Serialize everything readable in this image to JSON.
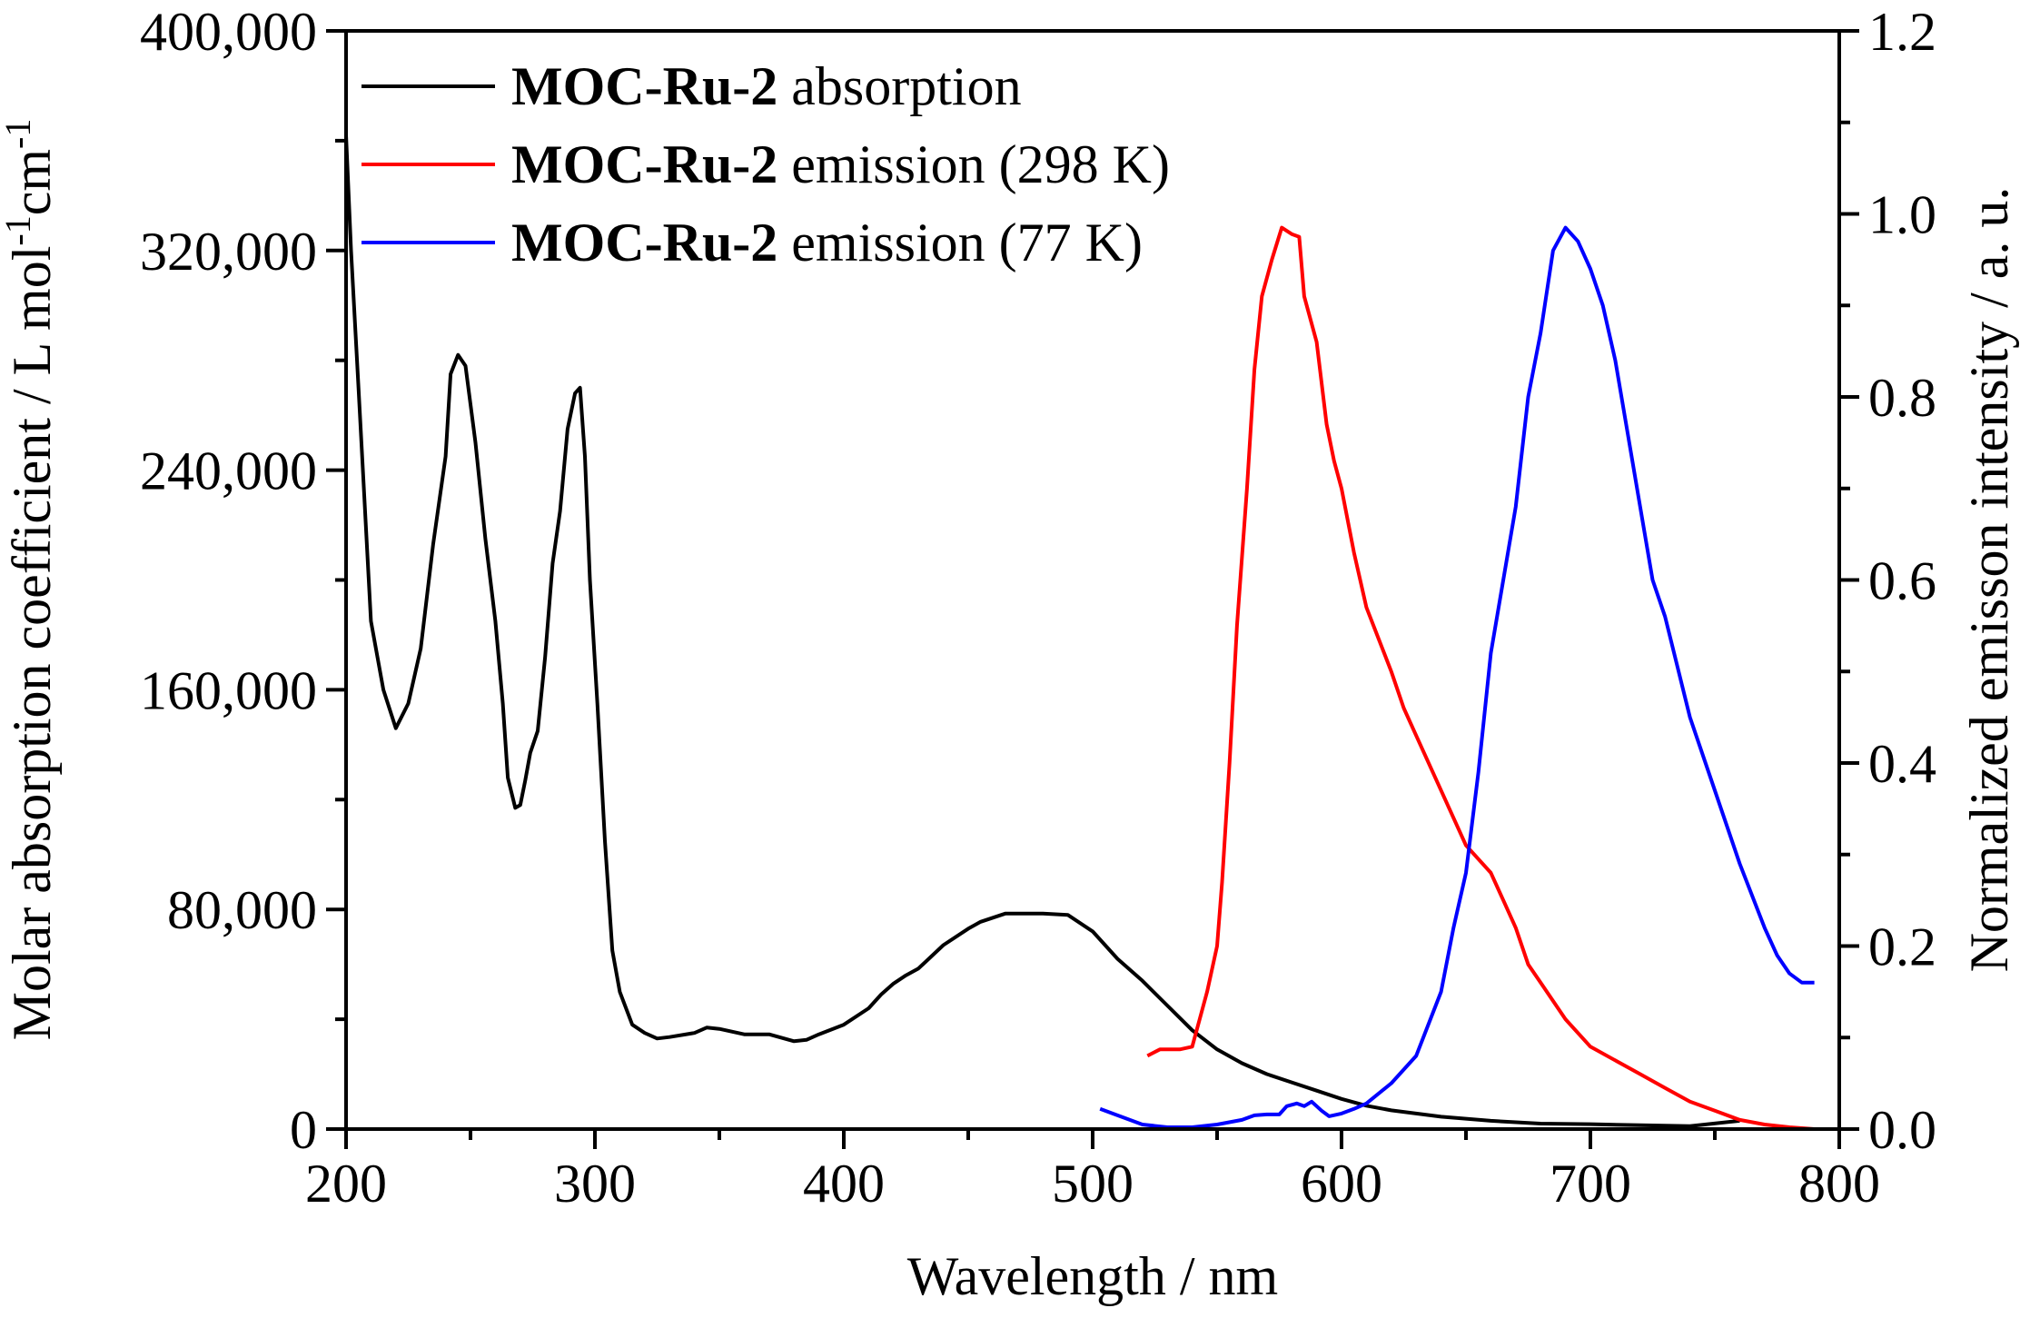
{
  "chart_data": {
    "type": "line",
    "xlabel": "Wavelength / nm",
    "ylabel_left": {
      "prefix": "Molar absorption coefficient / L mol",
      "sup1": "-1",
      "mid": "cm",
      "sup2": "-1"
    },
    "ylabel_right": "Normalized emisson intensity / a. u.",
    "xlim": [
      200,
      800
    ],
    "ylim_left": [
      0,
      400000
    ],
    "ylim_right": [
      0,
      1.2
    ],
    "x_ticks": [
      200,
      300,
      400,
      500,
      600,
      700,
      800
    ],
    "x_tick_labels": [
      "200",
      "300",
      "400",
      "500",
      "600",
      "700",
      "800"
    ],
    "y_left_ticks": [
      0,
      80000,
      160000,
      240000,
      320000,
      400000
    ],
    "y_left_tick_labels": [
      "0",
      "80,000",
      "160,000",
      "240,000",
      "320,000",
      "400,000"
    ],
    "y_right_ticks": [
      0,
      0.2,
      0.4,
      0.6,
      0.8,
      1.0,
      1.2
    ],
    "y_right_tick_labels": [
      "0.0",
      "0.2",
      "0.4",
      "0.6",
      "0.8",
      "1.0",
      "1.2"
    ],
    "legend_position": "top-left",
    "series": [
      {
        "name_bold": "MOC-Ru-2",
        "name_rest": " absorption",
        "color": "#000000",
        "axis": "left",
        "points": [
          [
            200,
            362000
          ],
          [
            202,
            320000
          ],
          [
            205,
            270000
          ],
          [
            210,
            185000
          ],
          [
            215,
            160000
          ],
          [
            220,
            146000
          ],
          [
            225,
            155000
          ],
          [
            230,
            175000
          ],
          [
            235,
            213000
          ],
          [
            240,
            245000
          ],
          [
            242,
            275000
          ],
          [
            245,
            282000
          ],
          [
            248,
            278000
          ],
          [
            252,
            250000
          ],
          [
            256,
            215000
          ],
          [
            260,
            185000
          ],
          [
            263,
            155000
          ],
          [
            265,
            128000
          ],
          [
            268,
            117000
          ],
          [
            270,
            118000
          ],
          [
            272,
            127000
          ],
          [
            274,
            137000
          ],
          [
            277,
            145000
          ],
          [
            280,
            172000
          ],
          [
            283,
            206000
          ],
          [
            286,
            225000
          ],
          [
            289,
            255000
          ],
          [
            292,
            268000
          ],
          [
            294,
            270000
          ],
          [
            296,
            245000
          ],
          [
            298,
            200000
          ],
          [
            301,
            155000
          ],
          [
            304,
            105000
          ],
          [
            307,
            65000
          ],
          [
            310,
            50000
          ],
          [
            315,
            38000
          ],
          [
            320,
            35000
          ],
          [
            325,
            33000
          ],
          [
            330,
            33500
          ],
          [
            340,
            35000
          ],
          [
            345,
            37000
          ],
          [
            350,
            36500
          ],
          [
            355,
            35500
          ],
          [
            360,
            34500
          ],
          [
            370,
            34500
          ],
          [
            380,
            32000
          ],
          [
            385,
            32500
          ],
          [
            390,
            34500
          ],
          [
            400,
            38000
          ],
          [
            410,
            44000
          ],
          [
            415,
            49000
          ],
          [
            420,
            53000
          ],
          [
            425,
            56000
          ],
          [
            430,
            58500
          ],
          [
            440,
            67000
          ],
          [
            450,
            73000
          ],
          [
            455,
            75500
          ],
          [
            465,
            78500
          ],
          [
            475,
            78500
          ],
          [
            480,
            78500
          ],
          [
            490,
            78000
          ],
          [
            500,
            72000
          ],
          [
            510,
            62000
          ],
          [
            520,
            54000
          ],
          [
            530,
            45000
          ],
          [
            540,
            36000
          ],
          [
            550,
            29000
          ],
          [
            560,
            24000
          ],
          [
            570,
            20000
          ],
          [
            580,
            17000
          ],
          [
            590,
            14000
          ],
          [
            600,
            11000
          ],
          [
            610,
            8500
          ],
          [
            620,
            6800
          ],
          [
            640,
            4500
          ],
          [
            660,
            3000
          ],
          [
            680,
            2000
          ],
          [
            700,
            1800
          ],
          [
            720,
            1400
          ],
          [
            740,
            1100
          ],
          [
            760,
            3000
          ]
        ]
      },
      {
        "name_bold": "MOC-Ru-2",
        "name_rest": " emission (298 K)",
        "color": "#ff0000",
        "axis": "right",
        "points": [
          [
            522,
            0.08
          ],
          [
            527,
            0.087
          ],
          [
            535,
            0.087
          ],
          [
            540,
            0.09
          ],
          [
            543,
            0.12
          ],
          [
            546,
            0.15
          ],
          [
            550,
            0.2
          ],
          [
            552,
            0.27
          ],
          [
            555,
            0.4
          ],
          [
            558,
            0.55
          ],
          [
            562,
            0.7
          ],
          [
            565,
            0.83
          ],
          [
            568,
            0.91
          ],
          [
            572,
            0.95
          ],
          [
            576,
            0.985
          ],
          [
            580,
            0.978
          ],
          [
            583,
            0.975
          ],
          [
            585,
            0.91
          ],
          [
            590,
            0.86
          ],
          [
            594,
            0.77
          ],
          [
            597,
            0.73
          ],
          [
            600,
            0.7
          ],
          [
            605,
            0.63
          ],
          [
            610,
            0.57
          ],
          [
            615,
            0.535
          ],
          [
            620,
            0.5
          ],
          [
            625,
            0.46
          ],
          [
            630,
            0.43
          ],
          [
            640,
            0.37
          ],
          [
            650,
            0.31
          ],
          [
            660,
            0.28
          ],
          [
            665,
            0.25
          ],
          [
            670,
            0.22
          ],
          [
            675,
            0.18
          ],
          [
            680,
            0.16
          ],
          [
            690,
            0.12
          ],
          [
            700,
            0.09
          ],
          [
            710,
            0.075
          ],
          [
            720,
            0.06
          ],
          [
            730,
            0.045
          ],
          [
            740,
            0.03
          ],
          [
            750,
            0.02
          ],
          [
            760,
            0.01
          ],
          [
            770,
            0.005
          ],
          [
            780,
            0.002
          ],
          [
            790,
            0.0
          ]
        ]
      },
      {
        "name_bold": "MOC-Ru-2",
        "name_rest": " emission (77 K)",
        "color": "#0000ff",
        "axis": "right",
        "points": [
          [
            503,
            0.022
          ],
          [
            510,
            0.015
          ],
          [
            520,
            0.005
          ],
          [
            530,
            0.002
          ],
          [
            540,
            0.002
          ],
          [
            550,
            0.005
          ],
          [
            560,
            0.01
          ],
          [
            565,
            0.015
          ],
          [
            570,
            0.016
          ],
          [
            575,
            0.016
          ],
          [
            578,
            0.025
          ],
          [
            582,
            0.028
          ],
          [
            585,
            0.025
          ],
          [
            588,
            0.03
          ],
          [
            592,
            0.02
          ],
          [
            595,
            0.014
          ],
          [
            600,
            0.017
          ],
          [
            605,
            0.022
          ],
          [
            610,
            0.028
          ],
          [
            620,
            0.05
          ],
          [
            630,
            0.08
          ],
          [
            640,
            0.15
          ],
          [
            645,
            0.22
          ],
          [
            650,
            0.28
          ],
          [
            655,
            0.39
          ],
          [
            660,
            0.52
          ],
          [
            665,
            0.6
          ],
          [
            670,
            0.68
          ],
          [
            675,
            0.8
          ],
          [
            680,
            0.87
          ],
          [
            685,
            0.96
          ],
          [
            690,
            0.985
          ],
          [
            695,
            0.97
          ],
          [
            700,
            0.94
          ],
          [
            705,
            0.9
          ],
          [
            710,
            0.84
          ],
          [
            715,
            0.76
          ],
          [
            720,
            0.68
          ],
          [
            725,
            0.6
          ],
          [
            730,
            0.56
          ],
          [
            740,
            0.45
          ],
          [
            750,
            0.37
          ],
          [
            760,
            0.29
          ],
          [
            770,
            0.22
          ],
          [
            775,
            0.19
          ],
          [
            780,
            0.17
          ],
          [
            785,
            0.16
          ],
          [
            790,
            0.16
          ]
        ]
      }
    ]
  }
}
